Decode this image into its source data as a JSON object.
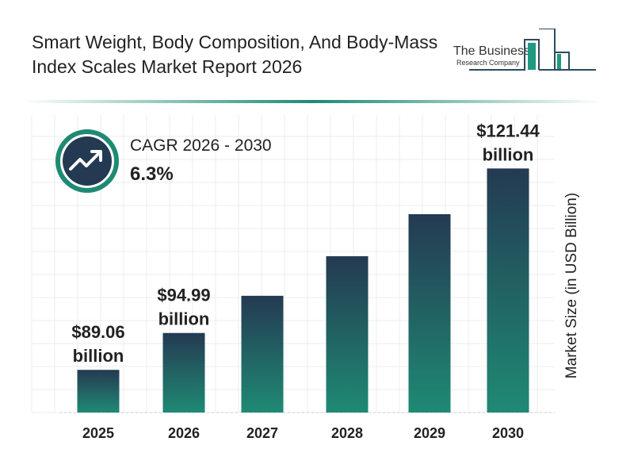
{
  "title": "Smart Weight, Body Composition, And Body-Mass Index Scales Market Report 2026",
  "logo": {
    "line1": "The Business",
    "line2": "Research Company"
  },
  "cagr": {
    "label": "CAGR 2026 - 2030",
    "value": "6.3%",
    "icon": "trending-up-icon"
  },
  "colors": {
    "bar_top": "#243a52",
    "bar_bottom": "#1f8a74",
    "accent": "#1f8a74"
  },
  "chart_data": {
    "type": "bar",
    "categories": [
      "2025",
      "2026",
      "2027",
      "2028",
      "2029",
      "2030"
    ],
    "values": [
      89.06,
      94.99,
      100.97,
      107.33,
      114.09,
      121.44
    ],
    "data_labels": [
      {
        "category": "2025",
        "line1": "$89.06",
        "line2": "billion"
      },
      {
        "category": "2026",
        "line1": "$94.99",
        "line2": "billion"
      },
      {
        "category": "2030",
        "line1": "$121.44",
        "line2": "billion"
      }
    ],
    "ylabel": "Market Size (in USD Billion)",
    "xlabel": "",
    "grid": true
  }
}
